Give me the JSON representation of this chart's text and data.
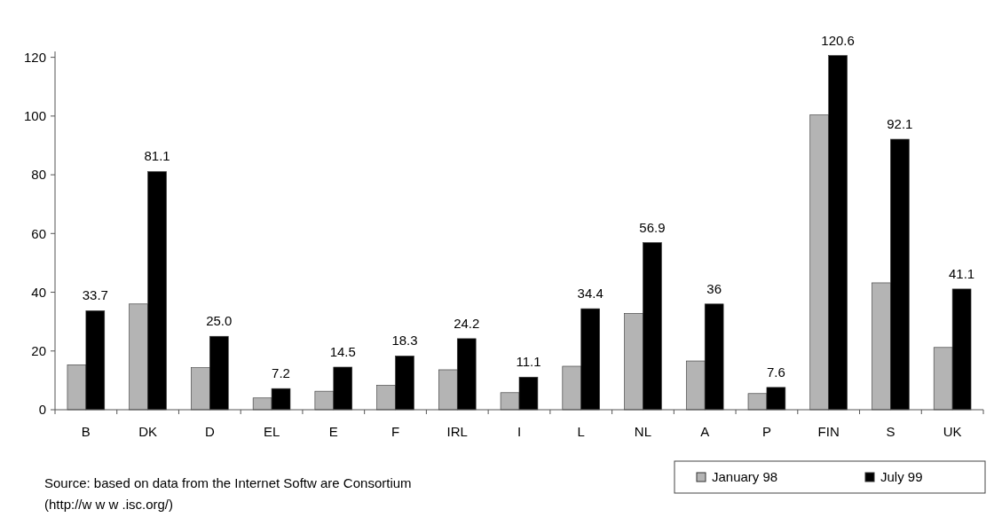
{
  "chart_data": {
    "type": "bar",
    "categories": [
      "B",
      "DK",
      "D",
      "EL",
      "E",
      "F",
      "IRL",
      "I",
      "L",
      "NL",
      "A",
      "P",
      "FIN",
      "S",
      "UK"
    ],
    "series": [
      {
        "name": "January 98",
        "color": "#b4b4b4",
        "values": [
          15.3,
          36,
          14.3,
          4,
          6.3,
          8.3,
          13.6,
          5.8,
          14.8,
          32.8,
          16.6,
          5.5,
          100.4,
          43.2,
          21.2
        ]
      },
      {
        "name": "July 99",
        "color": "#000000",
        "values": [
          33.7,
          81.1,
          25.0,
          7.2,
          14.5,
          18.3,
          24.2,
          11.1,
          34.4,
          56.9,
          36,
          7.6,
          120.6,
          92.1,
          41.1
        ],
        "value_labels": [
          "33.7",
          "81.1",
          "25.0",
          "7.2",
          "14.5",
          "18.3",
          "24.2",
          "11.1",
          "34.4",
          "56.9",
          "36",
          "7.6",
          "120.6",
          "92.1",
          "41.1"
        ]
      }
    ],
    "ylim": [
      0,
      122
    ],
    "yticks": [
      0,
      20,
      40,
      60,
      80,
      100,
      120
    ],
    "grid": false,
    "legend": "bottom right",
    "annotations": [
      "Source: based on data from the Internet Softw are Consortium",
      "(http://w w w .isc.org/)"
    ]
  }
}
